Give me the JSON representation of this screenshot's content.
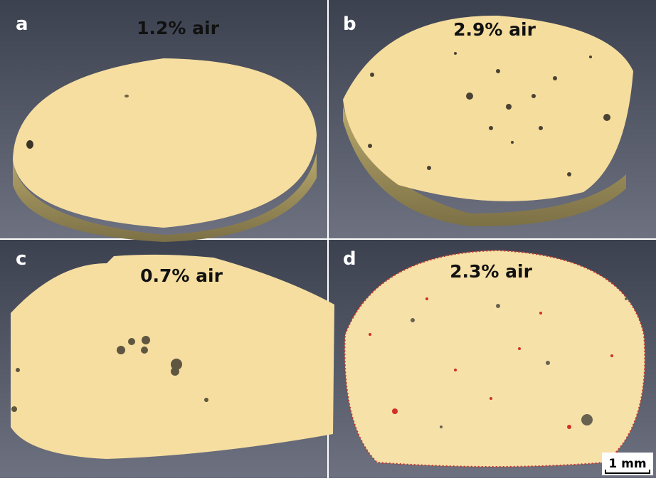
{
  "panels": [
    {
      "label": "a",
      "caption": "1.2% air"
    },
    {
      "label": "b",
      "caption": "2.9% air"
    },
    {
      "label": "c",
      "caption": "0.7% air"
    },
    {
      "label": "d",
      "caption": "2.3% air"
    }
  ],
  "scale_bar": "1 mm"
}
